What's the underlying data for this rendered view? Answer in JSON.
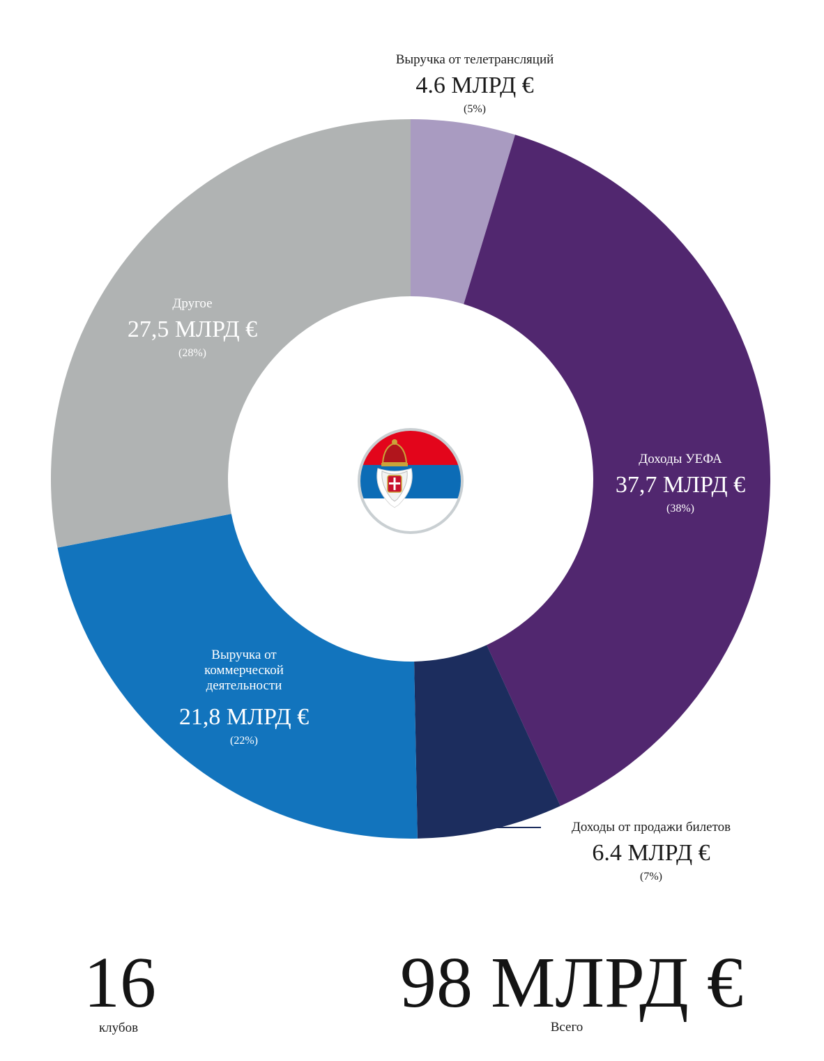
{
  "chart_data": {
    "type": "pie",
    "slices": [
      {
        "name": "Выручка от телетрансляций",
        "value_text": "4.6 МЛРД €",
        "pct_text": "(5%)",
        "value": 4.6,
        "percent": 5,
        "color": "#a99bc1"
      },
      {
        "name": "Доходы УЕФА",
        "value_text": "37,7 МЛРД €",
        "pct_text": "(38%)",
        "value": 37.7,
        "percent": 38,
        "color": "#51276f"
      },
      {
        "name": "Доходы от продажи билетов",
        "value_text": "6.4 МЛРД €",
        "pct_text": "(7%)",
        "value": 6.4,
        "percent": 7,
        "color": "#1c2d5e"
      },
      {
        "name": "Выручка от коммерческой деятельности",
        "value_text": "21,8 МЛРД €",
        "pct_text": "(22%)",
        "value": 21.8,
        "percent": 22,
        "color": "#1274bd"
      },
      {
        "name": "Другое",
        "value_text": "27,5 МЛРД €",
        "pct_text": "(28%)",
        "value": 27.5,
        "percent": 28,
        "color": "#b0b3b3"
      }
    ],
    "unit": "МЛРД €"
  },
  "summary": {
    "clubs_value": "16",
    "clubs_label": "клубов",
    "total_value": "98 МЛРД €",
    "total_label": "Всего"
  },
  "center_icon": "serbia-flag-emblem-icon",
  "colors": {
    "flag_red": "#e3051b",
    "flag_blue": "#0c6cb6",
    "ring": "#c9cfd2"
  }
}
